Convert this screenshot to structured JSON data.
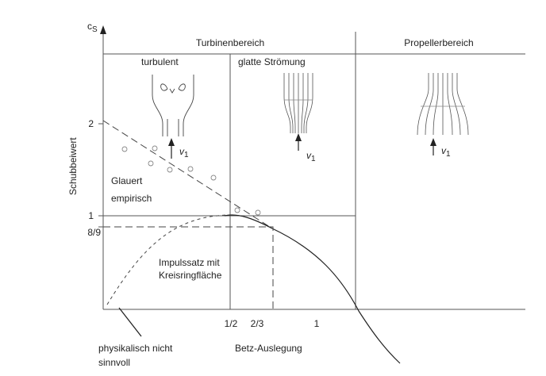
{
  "axes": {
    "y_axis_label": "Schubbeiwert",
    "y_axis_symbol": "c",
    "y_axis_subscript": "S",
    "y_ticks": [
      "2",
      "1",
      "8/9"
    ],
    "x_ticks": [
      "1/2",
      "2/3",
      "1"
    ]
  },
  "regions": {
    "turbine": "Turbinenbereich",
    "propeller": "Propellerbereich"
  },
  "flows": {
    "turbulent": "turbulent",
    "smooth": "glatte Strömung",
    "velocity_symbol": "v",
    "velocity_subscript": "1"
  },
  "annotations": {
    "glauert": "Glauert",
    "empirical": "empirisch",
    "momentum_line1": "Impulssatz mit",
    "momentum_line2": "Kreisringfläche",
    "not_physical_line1": "physikalisch nicht",
    "not_physical_line2": "sinnvoll",
    "betz": "Betz-Auslegung"
  }
}
